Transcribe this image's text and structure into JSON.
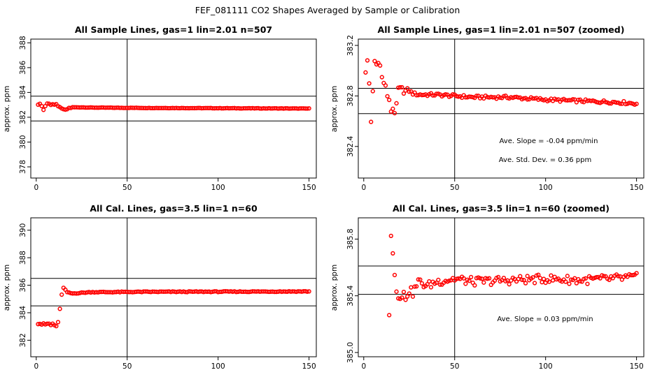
{
  "figure": {
    "title": "FEF_081111  CO2 Shapes Averaged by Sample or Calibration",
    "marker_color": "#ff0000"
  },
  "chart_data": [
    {
      "type": "scatter",
      "title": "All Sample Lines, gas=1 lin=2.01 n=507",
      "ylabel": "approx. ppm",
      "xlim": [
        -3,
        154
      ],
      "ylim": [
        377.1,
        388.3
      ],
      "xticks": [
        0,
        50,
        100,
        150
      ],
      "xtick_labels": [
        "0",
        "50",
        "100",
        "150"
      ],
      "yticks": [
        378,
        380,
        382,
        384,
        386,
        388
      ],
      "ytick_labels": [
        "378",
        "380",
        "382",
        "384",
        "386",
        "388"
      ],
      "vline": 50,
      "hlines": [
        381.7,
        383.7
      ],
      "series": {
        "anchors": [
          [
            1,
            383.0
          ],
          [
            2,
            383.1
          ],
          [
            3,
            382.9
          ],
          [
            4,
            382.6
          ],
          [
            5,
            382.9
          ],
          [
            6,
            383.1
          ],
          [
            7,
            383.1
          ],
          [
            8,
            383.0
          ],
          [
            9,
            383.05
          ],
          [
            10,
            383.0
          ],
          [
            11,
            383.05
          ],
          [
            12,
            382.9
          ],
          [
            13,
            382.8
          ],
          [
            14,
            382.7
          ],
          [
            15,
            382.65
          ],
          [
            16,
            382.6
          ],
          [
            17,
            382.65
          ],
          [
            18,
            382.75
          ],
          [
            19,
            382.75
          ],
          [
            20,
            382.8
          ],
          [
            25,
            382.8
          ],
          [
            30,
            382.78
          ],
          [
            60,
            382.75
          ],
          [
            100,
            382.73
          ],
          [
            150,
            382.7
          ]
        ],
        "noise": 0.015,
        "x_range": [
          1,
          150
        ]
      },
      "annotations": []
    },
    {
      "type": "scatter",
      "title": "All Sample Lines, gas=1 lin=2.01 n=507 (zoomed)",
      "ylabel": "approx. ppm",
      "xlim": [
        -3,
        154
      ],
      "ylim": [
        382.15,
        383.25
      ],
      "xticks": [
        0,
        50,
        100,
        150
      ],
      "xtick_labels": [
        "0",
        "50",
        "100",
        "150"
      ],
      "yticks": [
        382.4,
        382.8,
        383.2
      ],
      "ytick_labels": [
        "382.4",
        "382.8",
        "383.2"
      ],
      "vline": 50,
      "hlines": [
        382.66,
        382.86
      ],
      "series": {
        "anchors": [
          [
            1,
            382.98
          ],
          [
            2,
            383.08
          ],
          [
            3,
            382.9
          ],
          [
            4,
            382.6
          ],
          [
            5,
            382.83
          ],
          [
            6,
            383.07
          ],
          [
            7,
            383.05
          ],
          [
            8,
            383.06
          ],
          [
            9,
            383.04
          ],
          [
            10,
            382.96
          ],
          [
            11,
            382.9
          ],
          [
            12,
            382.88
          ],
          [
            13,
            382.8
          ],
          [
            14,
            382.76
          ],
          [
            15,
            382.68
          ],
          [
            16,
            382.7
          ],
          [
            17,
            382.67
          ],
          [
            18,
            382.73
          ],
          [
            19,
            382.86
          ],
          [
            20,
            382.86
          ],
          [
            21,
            382.86
          ],
          [
            22,
            382.83
          ],
          [
            24,
            382.85
          ],
          [
            27,
            382.82
          ],
          [
            30,
            382.81
          ],
          [
            40,
            382.81
          ],
          [
            50,
            382.8
          ],
          [
            60,
            382.79
          ],
          [
            80,
            382.79
          ],
          [
            100,
            382.77
          ],
          [
            120,
            382.76
          ],
          [
            140,
            382.75
          ],
          [
            150,
            382.74
          ]
        ],
        "noise": 0.012,
        "x_range": [
          1,
          150
        ]
      },
      "annotations": [
        "Ave. Slope =  -0.04  ppm/min",
        "Ave. Std. Dev. =  0.36  ppm"
      ]
    },
    {
      "type": "scatter",
      "title": "All Cal. Lines, gas=3.5 lin=1 n=60",
      "ylabel": "approx. ppm",
      "xlim": [
        -3,
        154
      ],
      "ylim": [
        380.8,
        390.9
      ],
      "xticks": [
        0,
        50,
        100,
        150
      ],
      "xtick_labels": [
        "0",
        "50",
        "100",
        "150"
      ],
      "yticks": [
        382,
        384,
        386,
        388,
        390
      ],
      "ytick_labels": [
        "382",
        "384",
        "386",
        "388",
        "390"
      ],
      "vline": 50,
      "hlines": [
        384.5,
        386.5
      ],
      "series": {
        "anchors": [
          [
            1,
            383.2
          ],
          [
            2,
            383.2
          ],
          [
            3,
            383.15
          ],
          [
            4,
            383.2
          ],
          [
            5,
            383.15
          ],
          [
            6,
            383.2
          ],
          [
            7,
            383.2
          ],
          [
            8,
            383.1
          ],
          [
            9,
            383.2
          ],
          [
            10,
            383.1
          ],
          [
            11,
            383.0
          ],
          [
            12,
            383.3
          ],
          [
            13,
            384.3
          ],
          [
            14,
            385.3
          ],
          [
            15,
            385.8
          ],
          [
            16,
            385.65
          ],
          [
            17,
            385.5
          ],
          [
            18,
            385.45
          ],
          [
            20,
            385.4
          ],
          [
            25,
            385.45
          ],
          [
            30,
            385.5
          ],
          [
            40,
            385.5
          ],
          [
            60,
            385.52
          ],
          [
            100,
            385.53
          ],
          [
            150,
            385.55
          ]
        ],
        "noise": 0.03,
        "x_range": [
          1,
          150
        ]
      },
      "annotations": []
    },
    {
      "type": "scatter",
      "title": "All Cal. Lines, gas=3.5 lin=1 n=60 (zoomed)",
      "ylabel": "approx. ppm",
      "xlim": [
        -3,
        154
      ],
      "ylim": [
        384.97,
        385.95
      ],
      "xticks": [
        0,
        50,
        100,
        150
      ],
      "xtick_labels": [
        "0",
        "50",
        "100",
        "150"
      ],
      "yticks": [
        385.0,
        385.4,
        385.8
      ],
      "ytick_labels": [
        "385.0",
        "385.4",
        "385.8"
      ],
      "vline": 50,
      "hlines": [
        385.41,
        385.61
      ],
      "series": {
        "anchors": [
          [
            14,
            385.29
          ],
          [
            15,
            385.84
          ],
          [
            16,
            385.7
          ],
          [
            17,
            385.55
          ],
          [
            18,
            385.45
          ],
          [
            19,
            385.41
          ],
          [
            20,
            385.4
          ],
          [
            21,
            385.38
          ],
          [
            22,
            385.41
          ],
          [
            23,
            385.39
          ],
          [
            25,
            385.44
          ],
          [
            27,
            385.42
          ],
          [
            30,
            385.5
          ],
          [
            35,
            385.47
          ],
          [
            40,
            385.5
          ],
          [
            50,
            385.52
          ],
          [
            60,
            385.5
          ],
          [
            80,
            385.51
          ],
          [
            100,
            385.52
          ],
          [
            120,
            385.51
          ],
          [
            150,
            385.53
          ]
        ],
        "noise": 0.03,
        "x_range": [
          14,
          150
        ]
      },
      "annotations": [
        "Ave. Slope =  0.03  ppm/min"
      ]
    }
  ]
}
